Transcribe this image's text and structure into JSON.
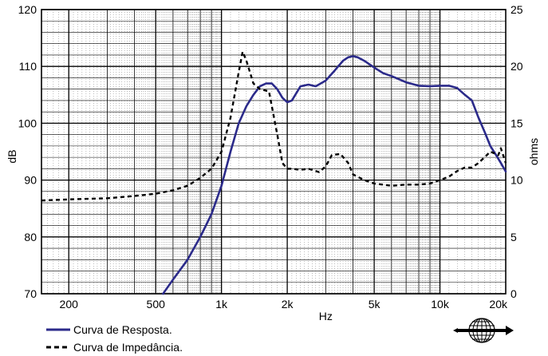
{
  "chart_data": {
    "type": "line",
    "xlabel": "Hz",
    "ylabel": "dB",
    "y2label": "ohms",
    "x_scale": "log",
    "xlim": [
      150,
      20000
    ],
    "ylim": [
      70,
      120
    ],
    "y2lim": [
      0,
      25
    ],
    "grid": true,
    "x_ticks": [
      {
        "value": 200,
        "label": "200"
      },
      {
        "value": 500,
        "label": "500"
      },
      {
        "value": 1000,
        "label": "1k"
      },
      {
        "value": 2000,
        "label": "2k"
      },
      {
        "value": 5000,
        "label": "5k"
      },
      {
        "value": 10000,
        "label": "10k"
      },
      {
        "value": 20000,
        "label": "20k"
      }
    ],
    "y_ticks": [
      "70",
      "80",
      "90",
      "100",
      "110",
      "120"
    ],
    "y2_ticks": [
      "0",
      "5",
      "10",
      "15",
      "20",
      "25"
    ],
    "series": [
      {
        "name": "Curva de Resposta.",
        "axis": "left",
        "color": "#2b2a8a",
        "style": "solid",
        "x": [
          540,
          600,
          700,
          800,
          900,
          1000,
          1100,
          1200,
          1300,
          1400,
          1500,
          1600,
          1700,
          1800,
          1900,
          2000,
          2100,
          2300,
          2500,
          2700,
          3000,
          3300,
          3600,
          3800,
          4000,
          4200,
          4500,
          5000,
          5500,
          6000,
          7000,
          8000,
          9000,
          10000,
          11000,
          12000,
          13000,
          14000,
          15000,
          16000,
          17000,
          18000,
          19000,
          20000
        ],
        "y": [
          70,
          72.5,
          76,
          80,
          84,
          89,
          95,
          100,
          103,
          105,
          106.5,
          107,
          107,
          106,
          104.5,
          103.7,
          104,
          106.5,
          106.8,
          106.5,
          107.5,
          109.3,
          111,
          111.6,
          111.8,
          111.6,
          111,
          109.8,
          108.8,
          108.3,
          107.2,
          106.6,
          106.5,
          106.6,
          106.6,
          106.2,
          105,
          104,
          101,
          98.5,
          96,
          94.5,
          93,
          91.5
        ]
      },
      {
        "name": "Curva de Impedância.",
        "axis": "right",
        "color": "#000000",
        "style": "dashed",
        "x": [
          150,
          200,
          300,
          400,
          500,
          600,
          700,
          800,
          900,
          1000,
          1100,
          1200,
          1250,
          1300,
          1400,
          1500,
          1650,
          1800,
          1900,
          2000,
          2100,
          2300,
          2500,
          2800,
          3000,
          3200,
          3500,
          3800,
          4000,
          4500,
          5000,
          6000,
          7000,
          8000,
          9000,
          10000,
          11000,
          12000,
          13000,
          14000,
          15000,
          16000,
          17000,
          18000,
          18500,
          19000,
          20000
        ],
        "y": [
          8.2,
          8.3,
          8.4,
          8.6,
          8.8,
          9.1,
          9.5,
          10.2,
          11,
          12.5,
          15.5,
          19.5,
          21.3,
          20.5,
          18.5,
          18,
          17.8,
          14,
          11.5,
          11,
          11,
          10.9,
          11,
          10.7,
          11.2,
          12.2,
          12.3,
          11.5,
          10.5,
          10,
          9.7,
          9.5,
          9.6,
          9.6,
          9.7,
          10,
          10.3,
          10.8,
          11.1,
          11.1,
          11.5,
          12,
          12.5,
          12.3,
          12.2,
          12.8,
          11.5
        ]
      }
    ]
  },
  "legend": {
    "items": [
      {
        "label": "Curva de Resposta.",
        "style": "solid",
        "color": "#2b2a8a"
      },
      {
        "label": "Curva de Impedância.",
        "style": "dashed",
        "color": "#000000"
      }
    ]
  },
  "logo": {
    "icon": "globe-logo-icon"
  }
}
